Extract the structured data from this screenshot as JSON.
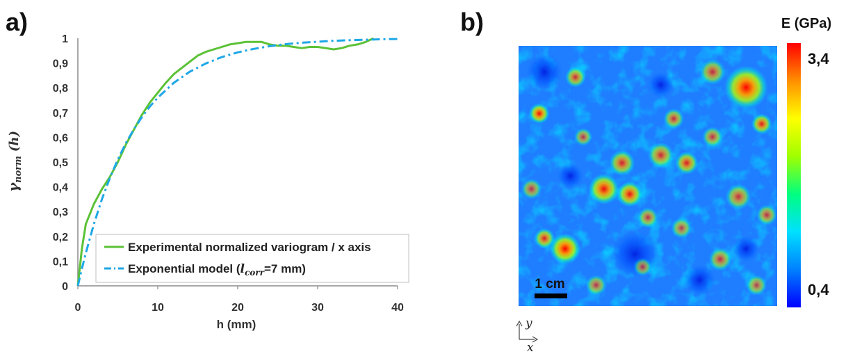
{
  "panel_a": {
    "label": "a)"
  },
  "panel_b": {
    "label": "b)"
  },
  "chart_data": [
    {
      "type": "line",
      "xlabel": "h (mm)",
      "ylabel": {
        "main": "γ",
        "sub": "norm",
        "arg": "(h)"
      },
      "xlim": [
        0,
        40
      ],
      "ylim": [
        0,
        1
      ],
      "x_ticks": [
        0,
        10,
        20,
        30,
        40
      ],
      "y_ticks": [
        "0",
        "0,1",
        "0,2",
        "0,3",
        "0,4",
        "0,5",
        "0,6",
        "0,7",
        "0,8",
        "0,9",
        "1"
      ],
      "grid": false,
      "legend_position": "bottom-left",
      "series": [
        {
          "name": "Experimental normalized variogram / x axis",
          "color": "#5bc236",
          "style": "solid",
          "x": [
            0,
            0.5,
            1,
            2,
            3,
            4,
            5,
            6,
            7,
            8,
            9,
            10,
            11,
            12,
            13,
            14,
            15,
            16,
            17,
            18,
            19,
            20,
            21,
            22,
            23,
            24,
            25,
            26,
            27,
            28,
            29,
            30,
            31,
            32,
            33,
            34,
            35,
            36,
            37
          ],
          "y": [
            0,
            0.15,
            0.25,
            0.33,
            0.39,
            0.44,
            0.5,
            0.57,
            0.63,
            0.69,
            0.74,
            0.78,
            0.82,
            0.855,
            0.88,
            0.905,
            0.93,
            0.945,
            0.955,
            0.965,
            0.975,
            0.98,
            0.985,
            0.985,
            0.985,
            0.975,
            0.97,
            0.97,
            0.965,
            0.96,
            0.965,
            0.965,
            0.96,
            0.955,
            0.96,
            0.97,
            0.975,
            0.985,
            1.0
          ]
        },
        {
          "name_prefix": "Exponential model (",
          "name_math": "l",
          "name_sub": "corr",
          "name_suffix": "=7 mm)",
          "color": "#1ea7e6",
          "style": "dashdot",
          "model": "1-exp(-h/7)",
          "x": [
            0,
            0.5,
            1,
            2,
            3,
            4,
            5,
            6,
            7,
            8,
            9,
            10,
            12,
            14,
            16,
            18,
            20,
            22,
            24,
            26,
            28,
            30,
            32,
            34,
            36,
            38,
            40
          ],
          "y": [
            0,
            0.069,
            0.133,
            0.249,
            0.349,
            0.435,
            0.51,
            0.576,
            0.632,
            0.681,
            0.724,
            0.76,
            0.82,
            0.865,
            0.898,
            0.924,
            0.943,
            0.957,
            0.968,
            0.976,
            0.982,
            0.986,
            0.99,
            0.992,
            0.994,
            0.996,
            0.997
          ]
        }
      ]
    },
    {
      "type": "heatmap",
      "colorbar": {
        "title": "E (GPa)",
        "max_label": "3,4",
        "min_label": "0,4",
        "colors": [
          "#0000ff",
          "#0080ff",
          "#00e0ff",
          "#00ff80",
          "#a0ff00",
          "#ffff00",
          "#ff9000",
          "#ff0000"
        ]
      },
      "scale_bar": {
        "label": "1 cm"
      },
      "axes_indicator": {
        "x": "x",
        "y": "y"
      },
      "hotspots": [
        {
          "cx": 0.88,
          "cy": 0.16,
          "r": 0.085,
          "v": 1.0
        },
        {
          "cx": 0.94,
          "cy": 0.3,
          "r": 0.04,
          "v": 0.75
        },
        {
          "cx": 0.18,
          "cy": 0.78,
          "r": 0.06,
          "v": 0.95
        },
        {
          "cx": 0.1,
          "cy": 0.74,
          "r": 0.04,
          "v": 0.7
        },
        {
          "cx": 0.33,
          "cy": 0.55,
          "r": 0.06,
          "v": 0.85
        },
        {
          "cx": 0.43,
          "cy": 0.57,
          "r": 0.05,
          "v": 0.8
        },
        {
          "cx": 0.4,
          "cy": 0.45,
          "r": 0.05,
          "v": 0.65
        },
        {
          "cx": 0.55,
          "cy": 0.42,
          "r": 0.05,
          "v": 0.6
        },
        {
          "cx": 0.65,
          "cy": 0.45,
          "r": 0.045,
          "v": 0.7
        },
        {
          "cx": 0.08,
          "cy": 0.26,
          "r": 0.04,
          "v": 0.85
        },
        {
          "cx": 0.22,
          "cy": 0.12,
          "r": 0.04,
          "v": 0.6
        },
        {
          "cx": 0.6,
          "cy": 0.28,
          "r": 0.04,
          "v": 0.55
        },
        {
          "cx": 0.75,
          "cy": 0.1,
          "r": 0.05,
          "v": 0.55
        },
        {
          "cx": 0.75,
          "cy": 0.35,
          "r": 0.04,
          "v": 0.5
        },
        {
          "cx": 0.85,
          "cy": 0.58,
          "r": 0.05,
          "v": 0.55
        },
        {
          "cx": 0.96,
          "cy": 0.65,
          "r": 0.04,
          "v": 0.5
        },
        {
          "cx": 0.5,
          "cy": 0.66,
          "r": 0.04,
          "v": 0.5
        },
        {
          "cx": 0.63,
          "cy": 0.7,
          "r": 0.04,
          "v": 0.45
        },
        {
          "cx": 0.78,
          "cy": 0.82,
          "r": 0.045,
          "v": 0.5
        },
        {
          "cx": 0.92,
          "cy": 0.92,
          "r": 0.04,
          "v": 0.45
        },
        {
          "cx": 0.05,
          "cy": 0.55,
          "r": 0.04,
          "v": 0.45
        },
        {
          "cx": 0.25,
          "cy": 0.35,
          "r": 0.035,
          "v": 0.45
        },
        {
          "cx": 0.3,
          "cy": 0.92,
          "r": 0.04,
          "v": 0.45
        },
        {
          "cx": 0.48,
          "cy": 0.85,
          "r": 0.035,
          "v": 0.4
        }
      ],
      "coldspots": [
        {
          "cx": 0.45,
          "cy": 0.8,
          "r": 0.09
        },
        {
          "cx": 0.1,
          "cy": 0.1,
          "r": 0.07
        },
        {
          "cx": 0.2,
          "cy": 0.5,
          "r": 0.05
        },
        {
          "cx": 0.7,
          "cy": 0.9,
          "r": 0.06
        },
        {
          "cx": 0.55,
          "cy": 0.15,
          "r": 0.05
        },
        {
          "cx": 0.88,
          "cy": 0.78,
          "r": 0.05
        }
      ]
    }
  ]
}
